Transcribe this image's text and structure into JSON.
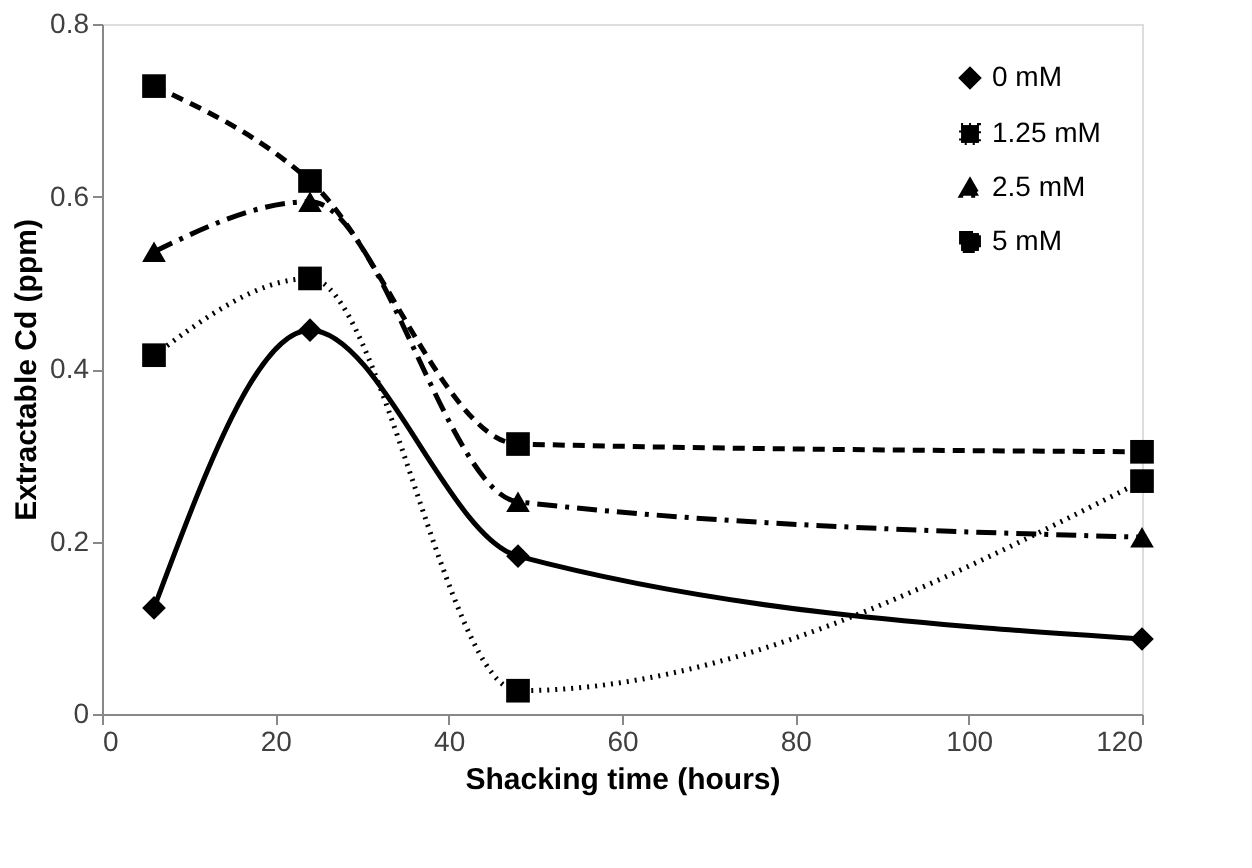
{
  "chart_data": {
    "type": "line",
    "xlabel": "Shacking time (hours)",
    "ylabel": "Extractable Cd (ppm)",
    "x": [
      6,
      24,
      48,
      120
    ],
    "xlim": [
      0,
      120
    ],
    "xticks": [
      0,
      20,
      40,
      60,
      80,
      100,
      120
    ],
    "ylim": [
      0,
      0.8
    ],
    "yticks": [
      0,
      0.2,
      0.4,
      0.6,
      0.8
    ],
    "grid": false,
    "legend": "top right",
    "series": [
      {
        "name": "0 mM",
        "color": "#000000",
        "marker": "diamond",
        "line_style": "solid",
        "values": [
          0.123,
          0.445,
          0.183,
          0.087
        ]
      },
      {
        "name": "1.25 mM",
        "color": "#000000",
        "marker": "square",
        "line_style": "dotted",
        "values": [
          0.416,
          0.505,
          0.027,
          0.27
        ]
      },
      {
        "name": "2.5 mM",
        "color": "#000000",
        "marker": "triangle",
        "line_style": "dashdot",
        "values": [
          0.536,
          0.594,
          0.246,
          0.205
        ]
      },
      {
        "name": "5 mM",
        "color": "#000000",
        "marker": "square",
        "line_style": "dashed",
        "values": [
          0.728,
          0.618,
          0.313,
          0.304
        ]
      }
    ]
  }
}
